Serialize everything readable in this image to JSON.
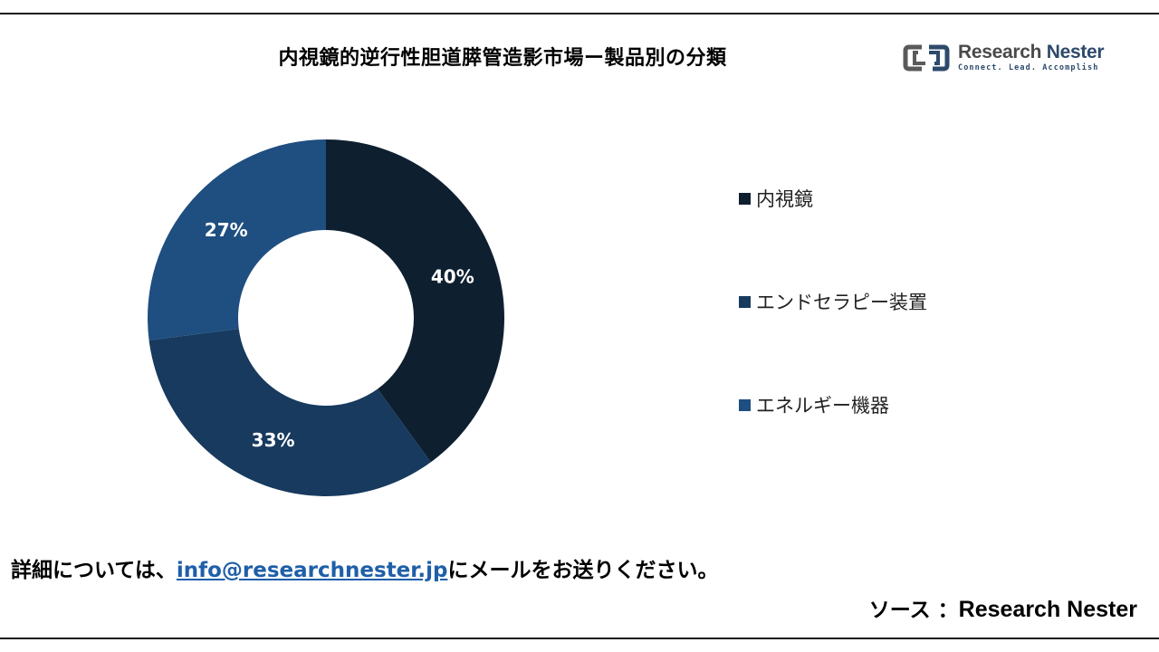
{
  "header": {
    "title": "内視鏡的逆行性胆道膵管造影市場ー製品別の分類"
  },
  "logo": {
    "name_part1": "Research",
    "name_part2": "Nester",
    "tagline": "Connect. Lead. Accomplish"
  },
  "chart_data": {
    "type": "pie",
    "donut": true,
    "categories": [
      "内視鏡",
      "エンドセラピー装置",
      "エネルギー機器"
    ],
    "values": [
      40,
      33,
      27
    ],
    "data_labels": [
      "40%",
      "33%",
      "27%"
    ],
    "colors": [
      "#0e1f30",
      "#173a5e",
      "#1f4e80"
    ],
    "legend_position": "right"
  },
  "footer": {
    "prefix": "詳細については、",
    "email": "info@researchnester.jp",
    "suffix": "にメールをお送りください。"
  },
  "source": {
    "label": "ソース ：",
    "name": "Research Nester"
  }
}
